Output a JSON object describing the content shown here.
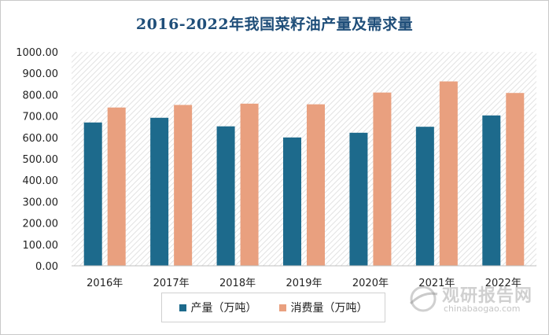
{
  "colors": {
    "production": "#1d6a8c",
    "consumption": "#e9a07f",
    "title": "#1f4e79",
    "plot_bg_stripe": "#e4e4e4"
  },
  "chart_data": {
    "type": "bar",
    "title": "2016-2022年我国菜籽油产量及需求量",
    "categories": [
      "2016年",
      "2017年",
      "2018年",
      "2019年",
      "2020年",
      "2021年",
      "2022年"
    ],
    "series": [
      {
        "name": "产量（万吨）",
        "values": [
          670,
          692,
          652,
          600,
          622,
          650,
          703
        ]
      },
      {
        "name": "消费量（万吨）",
        "values": [
          740,
          752,
          758,
          755,
          810,
          862,
          808
        ]
      }
    ],
    "ylim": [
      0,
      1000
    ],
    "yticks": [
      "0.00",
      "100.00",
      "200.00",
      "300.00",
      "400.00",
      "500.00",
      "600.00",
      "700.00",
      "800.00",
      "900.00",
      "1000.00"
    ],
    "xlabel": "",
    "ylabel": "",
    "legend": "bottom"
  },
  "watermark": {
    "name": "观研报告网",
    "url": "chinabaogao.com",
    "icon": "globe-swoosh-icon"
  }
}
